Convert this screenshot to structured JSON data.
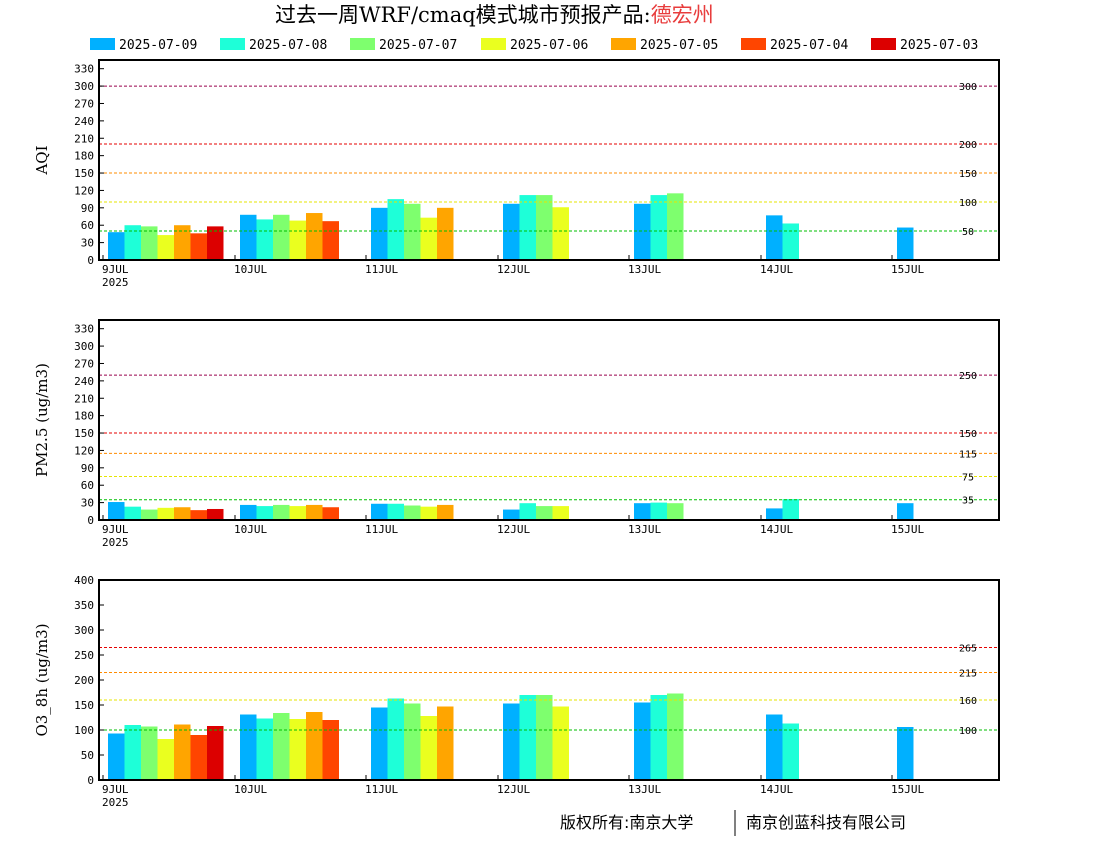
{
  "header": {
    "title": "过去一周WRF/cmaq模式城市预报产品:",
    "city": "德宏州"
  },
  "footer": {
    "left": "版权所有:南京大学",
    "right": "南京创蓝科技有限公司"
  },
  "colors": {
    "series": [
      "#00b0ff",
      "#1effd8",
      "#7eff6e",
      "#eaff1f",
      "#ffa500",
      "#ff4500",
      "#dc0000"
    ],
    "frame": "#000000",
    "title_city": "#e83c3c"
  },
  "chart_data": [
    {
      "type": "bar",
      "ylabel": "AQI",
      "ylim": [
        0,
        345
      ],
      "yticks": [
        0,
        30,
        60,
        90,
        120,
        150,
        180,
        210,
        240,
        270,
        300,
        330
      ],
      "x_date_labels": [
        "9JUL",
        "10JUL",
        "11JUL",
        "12JUL",
        "13JUL",
        "14JUL",
        "15JUL"
      ],
      "x_year_label": "2025",
      "legend": {
        "position": "top",
        "entries": [
          "2025-07-09",
          "2025-07-08",
          "2025-07-07",
          "2025-07-06",
          "2025-07-05",
          "2025-07-04",
          "2025-07-03"
        ]
      },
      "thresholds": [
        {
          "value": 50,
          "label": "50",
          "color": "#00bf00"
        },
        {
          "value": 100,
          "label": "100",
          "color": "#e6e600"
        },
        {
          "value": 150,
          "label": "150",
          "color": "#ff8c00"
        },
        {
          "value": 200,
          "label": "200",
          "color": "#e60000"
        },
        {
          "value": 300,
          "label": "300",
          "color": "#99004c"
        }
      ],
      "series": [
        {
          "name": "2025-07-09",
          "values": [
            48,
            78,
            90,
            97,
            97,
            77,
            56
          ]
        },
        {
          "name": "2025-07-08",
          "values": [
            60,
            70,
            105,
            112,
            112,
            63,
            null
          ]
        },
        {
          "name": "2025-07-07",
          "values": [
            58,
            78,
            97,
            112,
            115,
            null,
            null
          ]
        },
        {
          "name": "2025-07-06",
          "values": [
            43,
            68,
            73,
            91,
            null,
            null,
            null
          ]
        },
        {
          "name": "2025-07-05",
          "values": [
            60,
            81,
            90,
            null,
            null,
            null,
            null
          ]
        },
        {
          "name": "2025-07-04",
          "values": [
            46,
            67,
            null,
            null,
            null,
            null,
            null
          ]
        },
        {
          "name": "2025-07-03",
          "values": [
            58,
            null,
            null,
            null,
            null,
            null,
            null
          ]
        }
      ]
    },
    {
      "type": "bar",
      "ylabel": "PM2.5 (ug/m3)",
      "ylim": [
        0,
        345
      ],
      "yticks": [
        0,
        30,
        60,
        90,
        120,
        150,
        180,
        210,
        240,
        270,
        300,
        330
      ],
      "x_date_labels": [
        "9JUL",
        "10JUL",
        "11JUL",
        "12JUL",
        "13JUL",
        "14JUL",
        "15JUL"
      ],
      "x_year_label": "2025",
      "thresholds": [
        {
          "value": 35,
          "label": "35",
          "color": "#00bf00"
        },
        {
          "value": 75,
          "label": "75",
          "color": "#e6e600"
        },
        {
          "value": 115,
          "label": "115",
          "color": "#ff8c00"
        },
        {
          "value": 150,
          "label": "150",
          "color": "#e60000"
        },
        {
          "value": 250,
          "label": "250",
          "color": "#99004c"
        }
      ],
      "series": [
        {
          "name": "2025-07-09",
          "values": [
            31,
            26,
            28,
            18,
            29,
            20,
            29
          ]
        },
        {
          "name": "2025-07-08",
          "values": [
            23,
            24,
            28,
            29,
            30,
            36,
            null
          ]
        },
        {
          "name": "2025-07-07",
          "values": [
            18,
            26,
            25,
            24,
            29,
            null,
            null
          ]
        },
        {
          "name": "2025-07-06",
          "values": [
            21,
            24,
            23,
            24,
            null,
            null,
            null
          ]
        },
        {
          "name": "2025-07-05",
          "values": [
            22,
            26,
            26,
            null,
            null,
            null,
            null
          ]
        },
        {
          "name": "2025-07-04",
          "values": [
            17,
            22,
            null,
            null,
            null,
            null,
            null
          ]
        },
        {
          "name": "2025-07-03",
          "values": [
            19,
            null,
            null,
            null,
            null,
            null,
            null
          ]
        }
      ]
    },
    {
      "type": "bar",
      "ylabel": "O3_8h (ug/m3)",
      "ylim": [
        0,
        400
      ],
      "yticks": [
        0,
        50,
        100,
        150,
        200,
        250,
        300,
        350,
        400
      ],
      "x_date_labels": [
        "9JUL",
        "10JUL",
        "11JUL",
        "12JUL",
        "13JUL",
        "14JUL",
        "15JUL"
      ],
      "x_year_label": "2025",
      "thresholds": [
        {
          "value": 100,
          "label": "100",
          "color": "#00bf00"
        },
        {
          "value": 160,
          "label": "160",
          "color": "#e6e600"
        },
        {
          "value": 215,
          "label": "215",
          "color": "#ff8c00"
        },
        {
          "value": 265,
          "label": "265",
          "color": "#e60000"
        }
      ],
      "series": [
        {
          "name": "2025-07-09",
          "values": [
            93,
            131,
            145,
            153,
            155,
            131,
            106
          ]
        },
        {
          "name": "2025-07-08",
          "values": [
            110,
            123,
            163,
            170,
            170,
            113,
            null
          ]
        },
        {
          "name": "2025-07-07",
          "values": [
            107,
            134,
            153,
            170,
            173,
            null,
            null
          ]
        },
        {
          "name": "2025-07-06",
          "values": [
            82,
            122,
            128,
            147,
            null,
            null,
            null
          ]
        },
        {
          "name": "2025-07-05",
          "values": [
            111,
            136,
            147,
            null,
            null,
            null,
            null
          ]
        },
        {
          "name": "2025-07-04",
          "values": [
            90,
            120,
            null,
            null,
            null,
            null,
            null
          ]
        },
        {
          "name": "2025-07-03",
          "values": [
            108,
            null,
            null,
            null,
            null,
            null,
            null
          ]
        }
      ]
    }
  ]
}
